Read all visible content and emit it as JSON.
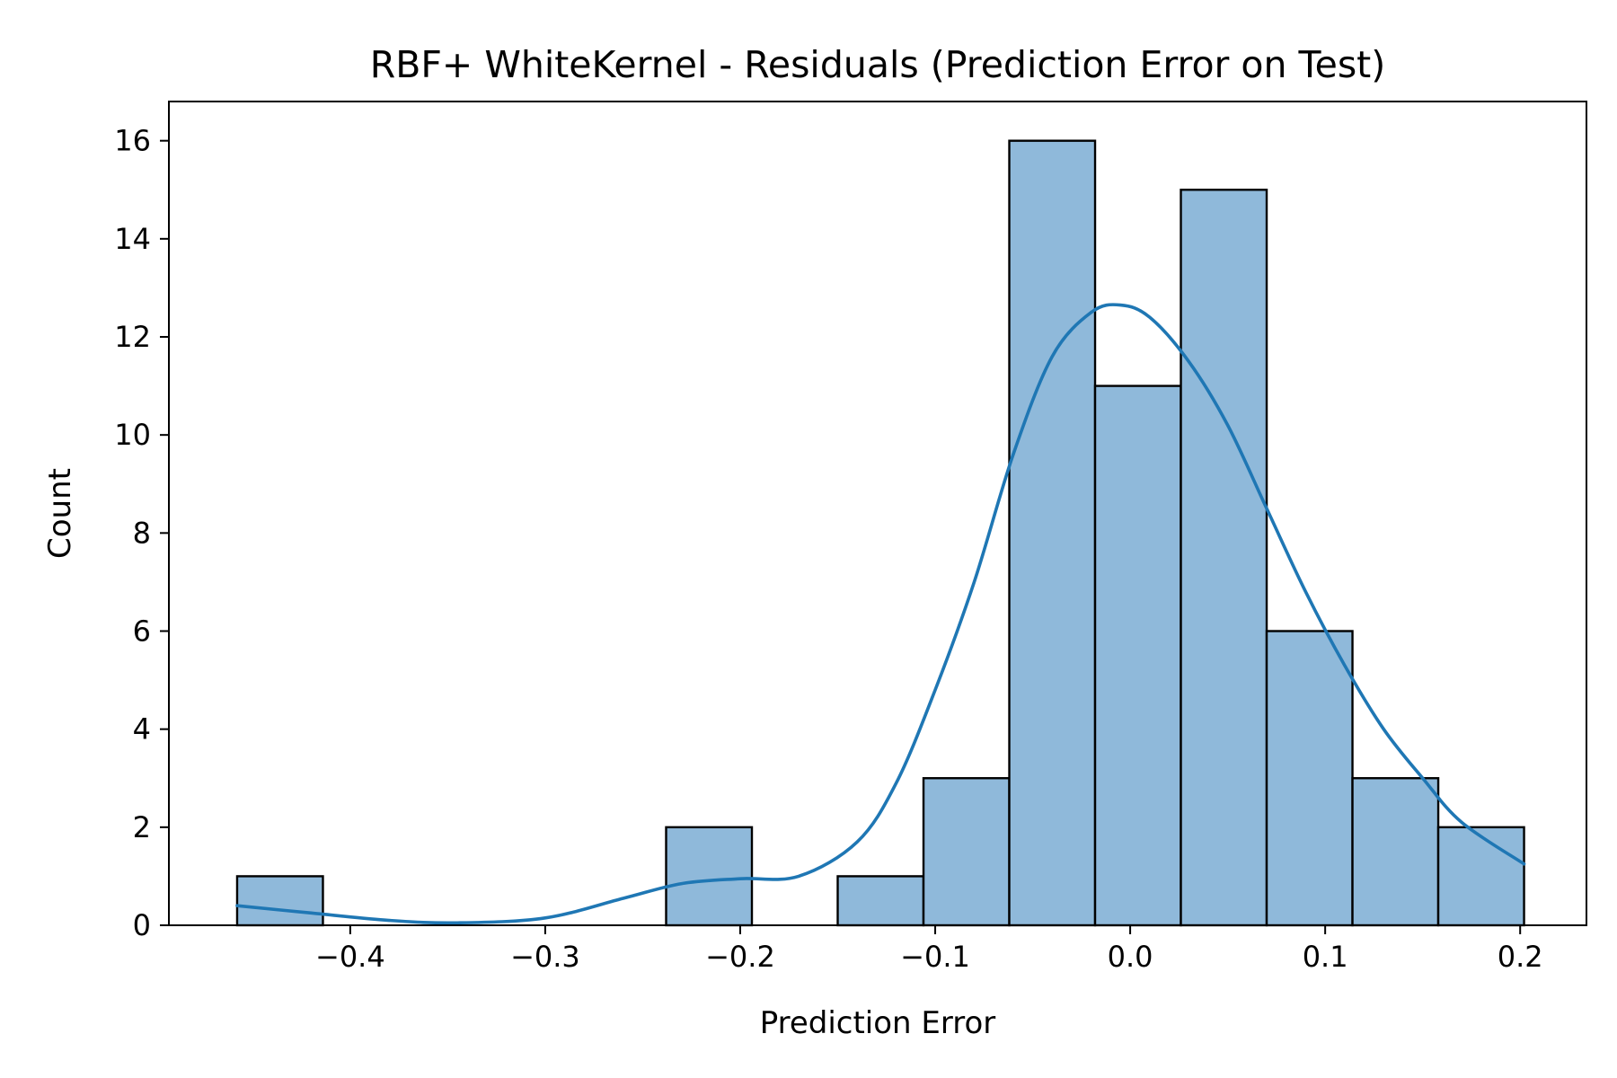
{
  "chart_data": {
    "type": "bar",
    "title": "RBF+ WhiteKernel - Residuals (Prediction Error on Test)",
    "xlabel": "Prediction Error",
    "ylabel": "Count",
    "xlim": [
      -0.493,
      0.234
    ],
    "ylim": [
      0,
      16.8
    ],
    "xticks": [
      -0.4,
      -0.3,
      -0.2,
      -0.1,
      0.0,
      0.1,
      0.2
    ],
    "xtick_labels": [
      "−0.4",
      "−0.3",
      "−0.2",
      "−0.1",
      "0.0",
      "0.1",
      "0.2"
    ],
    "yticks": [
      0,
      2,
      4,
      6,
      8,
      10,
      12,
      14,
      16
    ],
    "ytick_labels": [
      "0",
      "2",
      "4",
      "6",
      "8",
      "10",
      "12",
      "14",
      "16"
    ],
    "bins": [
      {
        "x0": -0.458,
        "x1": -0.414,
        "count": 1
      },
      {
        "x0": -0.414,
        "x1": -0.37,
        "count": 0
      },
      {
        "x0": -0.37,
        "x1": -0.326,
        "count": 0
      },
      {
        "x0": -0.326,
        "x1": -0.282,
        "count": 0
      },
      {
        "x0": -0.282,
        "x1": -0.238,
        "count": 0
      },
      {
        "x0": -0.238,
        "x1": -0.194,
        "count": 2
      },
      {
        "x0": -0.194,
        "x1": -0.15,
        "count": 0
      },
      {
        "x0": -0.15,
        "x1": -0.106,
        "count": 1
      },
      {
        "x0": -0.106,
        "x1": -0.062,
        "count": 3
      },
      {
        "x0": -0.062,
        "x1": -0.018,
        "count": 16
      },
      {
        "x0": -0.018,
        "x1": 0.026,
        "count": 11
      },
      {
        "x0": 0.026,
        "x1": 0.07,
        "count": 15
      },
      {
        "x0": 0.07,
        "x1": 0.114,
        "count": 6
      },
      {
        "x0": 0.114,
        "x1": 0.158,
        "count": 3
      },
      {
        "x0": 0.158,
        "x1": 0.202,
        "count": 2
      }
    ],
    "kde": {
      "x": [
        -0.458,
        -0.42,
        -0.38,
        -0.345,
        -0.3,
        -0.26,
        -0.23,
        -0.2,
        -0.17,
        -0.14,
        -0.12,
        -0.1,
        -0.08,
        -0.06,
        -0.04,
        -0.02,
        -0.005,
        0.01,
        0.03,
        0.05,
        0.07,
        0.09,
        0.11,
        0.13,
        0.15,
        0.17,
        0.202
      ],
      "y": [
        0.4,
        0.25,
        0.1,
        0.05,
        0.15,
        0.55,
        0.85,
        0.95,
        1.0,
        1.7,
        2.9,
        4.8,
        7.0,
        9.6,
        11.6,
        12.5,
        12.65,
        12.4,
        11.5,
        10.2,
        8.5,
        6.8,
        5.3,
        4.0,
        3.0,
        2.1,
        1.25
      ]
    },
    "colors": {
      "bar_fill": "#8fb9da",
      "bar_edge": "#000000",
      "kde_line": "#1f77b4"
    },
    "grid": false,
    "legend": "none"
  }
}
